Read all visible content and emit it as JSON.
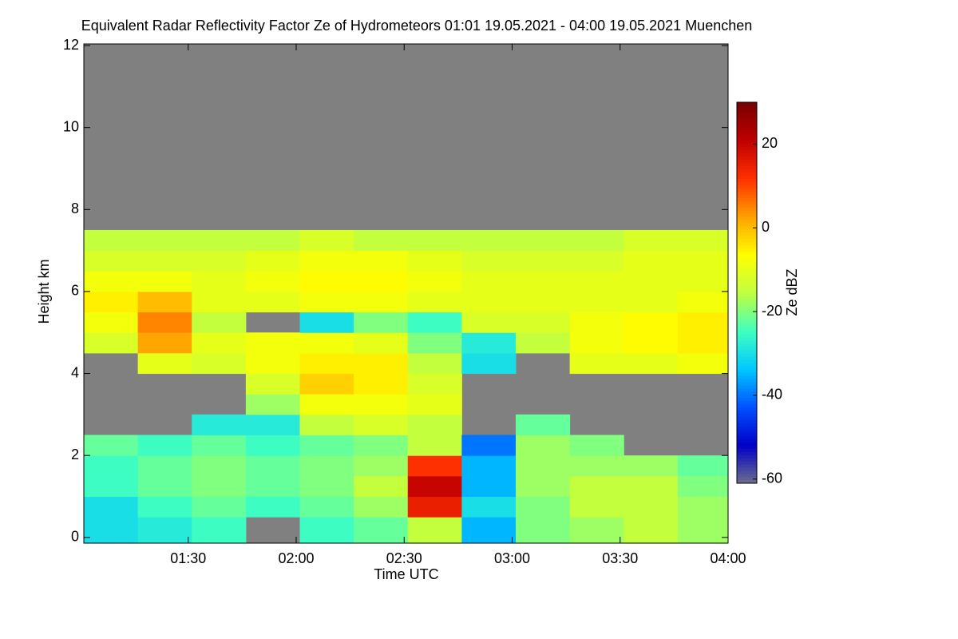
{
  "chart_data": {
    "type": "heatmap",
    "title": "Equivalent Radar Reflectivity Factor Ze of Hydrometeors   01:01 19.05.2021 - 04:00 19.05.2021 Muenchen",
    "xlabel": "Time UTC",
    "ylabel": "Height km",
    "colorbar_label": "Ze dBZ",
    "xlim": [
      61,
      240
    ],
    "xticks": [
      {
        "value": 90,
        "label": "01:30"
      },
      {
        "value": 120,
        "label": "02:00"
      },
      {
        "value": 150,
        "label": "02:30"
      },
      {
        "value": 180,
        "label": "03:00"
      },
      {
        "value": 210,
        "label": "03:30"
      },
      {
        "value": 240,
        "label": "04:00"
      }
    ],
    "ylim": [
      -0.14,
      12.04
    ],
    "yticks": [
      0,
      2,
      4,
      6,
      8,
      10,
      12
    ],
    "clim": [
      -61,
      30
    ],
    "cticks": [
      -60,
      -40,
      -20,
      0,
      20
    ],
    "background_color": "#808080",
    "colormap": [
      "#6e6e8c",
      "#0000c8",
      "#0050ff",
      "#00c8ff",
      "#40ffc0",
      "#c0ff40",
      "#ffff00",
      "#ffa000",
      "#ff3000",
      "#c00000",
      "#780000"
    ],
    "x_edges": [
      61,
      76,
      91,
      106,
      121,
      136,
      151,
      166,
      181,
      196,
      211,
      226,
      240
    ],
    "y_edges": [
      0,
      0.5,
      1,
      1.5,
      2,
      2.5,
      3,
      3.5,
      4,
      4.5,
      5,
      5.5,
      6,
      6.5,
      7,
      7.5,
      8
    ],
    "z": [
      [
        -30,
        -30,
        -25,
        -25,
        -22,
        null,
        null,
        null,
        null,
        -12,
        -8,
        -5,
        -8,
        -12,
        -15,
        null
      ],
      [
        -28,
        -25,
        -22,
        -22,
        -25,
        null,
        null,
        null,
        -10,
        2,
        5,
        0,
        -8,
        -12,
        -15,
        null
      ],
      [
        -25,
        -22,
        -20,
        -20,
        -22,
        -28,
        null,
        null,
        -12,
        -10,
        -15,
        -10,
        -10,
        -12,
        -15,
        null
      ],
      [
        null,
        -25,
        -22,
        -22,
        -25,
        -28,
        -18,
        -12,
        -8,
        -8,
        null,
        -10,
        -8,
        -10,
        -15,
        null
      ],
      [
        -25,
        -22,
        -20,
        -20,
        -22,
        -15,
        -8,
        -2,
        -5,
        -8,
        -30,
        -8,
        -6,
        -8,
        -12,
        null
      ],
      [
        -22,
        -18,
        -15,
        -18,
        -20,
        -12,
        -8,
        -5,
        -5,
        -10,
        -20,
        -8,
        -6,
        -8,
        -15,
        null
      ],
      [
        -15,
        15,
        20,
        12,
        -15,
        -15,
        -10,
        -12,
        -15,
        -20,
        -25,
        -10,
        -8,
        -10,
        -15,
        null
      ],
      [
        -35,
        -30,
        -35,
        -35,
        -40,
        null,
        null,
        null,
        -30,
        -28,
        -12,
        -10,
        -10,
        -12,
        -15,
        null
      ],
      [
        -20,
        -20,
        -18,
        -18,
        -18,
        -22,
        null,
        null,
        null,
        -15,
        -12,
        -10,
        -10,
        -12,
        -15,
        null
      ],
      [
        -18,
        -15,
        -15,
        -18,
        -20,
        null,
        null,
        null,
        -10,
        -8,
        -8,
        -10,
        -10,
        -12,
        -15,
        null
      ],
      [
        -15,
        -15,
        -15,
        -18,
        null,
        null,
        null,
        null,
        -10,
        -6,
        -6,
        -10,
        -10,
        -10,
        -12,
        null
      ],
      [
        -18,
        -18,
        -20,
        -22,
        null,
        null,
        null,
        null,
        -8,
        -5,
        -5,
        -8,
        -10,
        -10,
        -12,
        null
      ]
    ]
  }
}
